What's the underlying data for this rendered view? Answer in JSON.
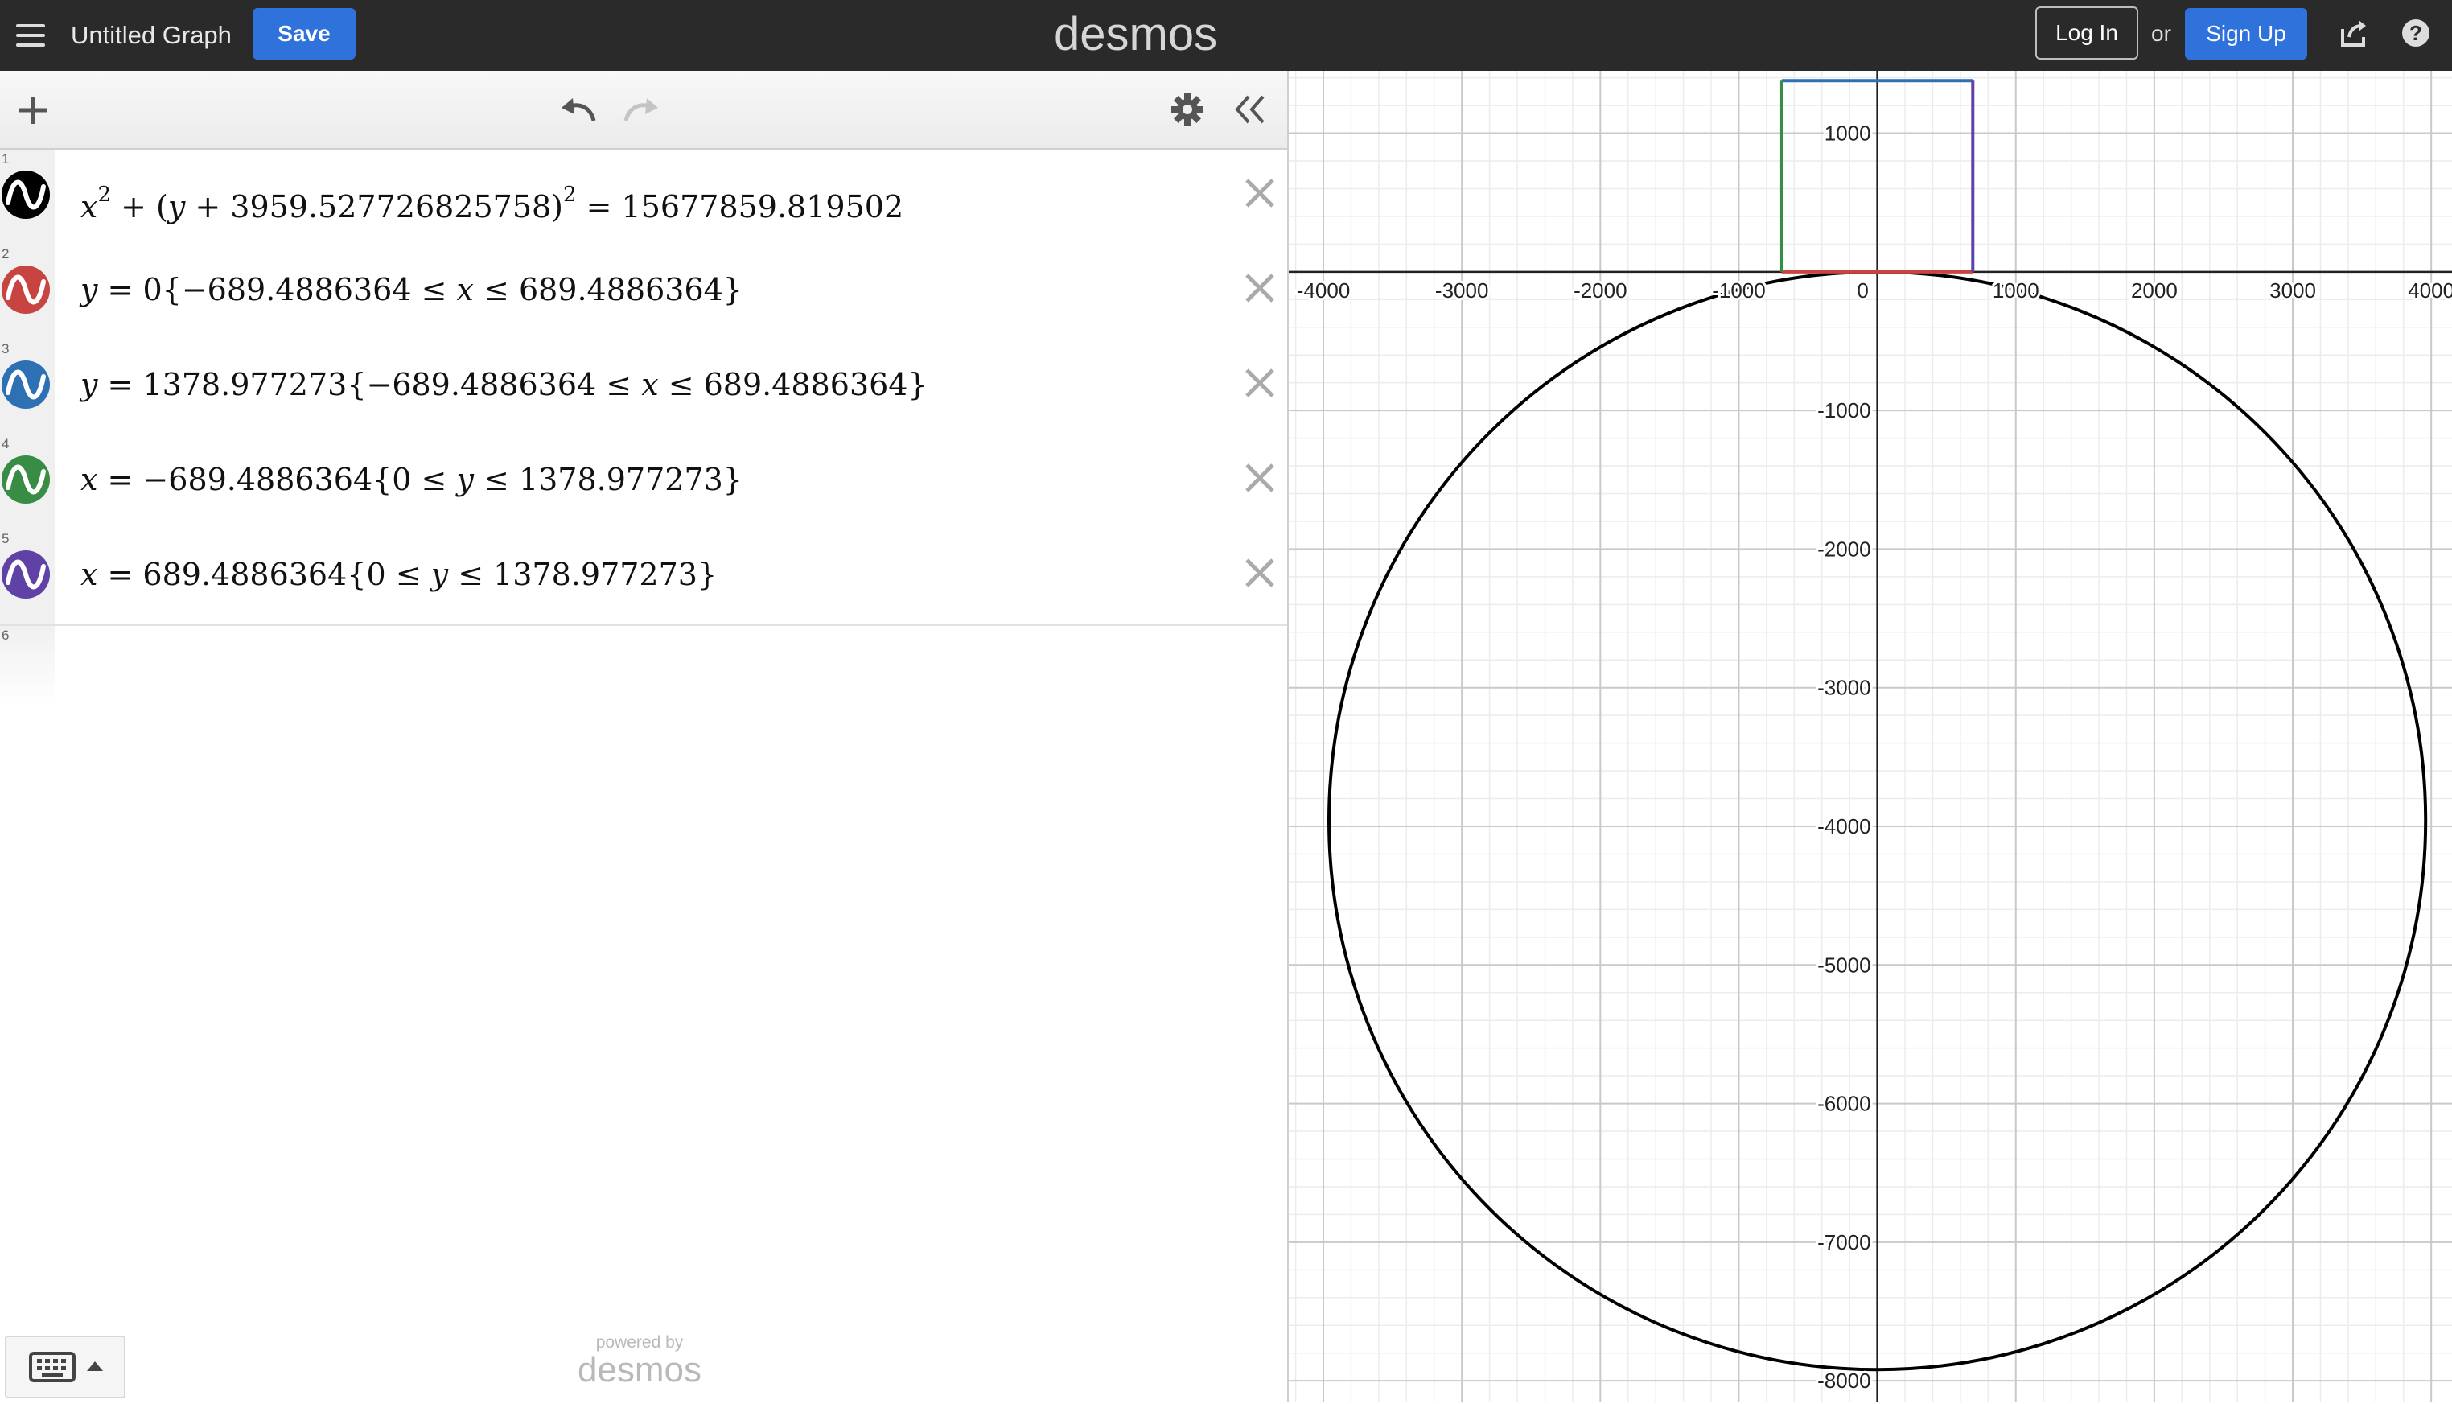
{
  "header": {
    "title": "Untitled Graph",
    "save_label": "Save",
    "logo_text": "desmos",
    "login_label": "Log In",
    "or_text": "or",
    "signup_label": "Sign Up",
    "help_label": "?"
  },
  "toolbar": {
    "icons": [
      "plus-icon",
      "undo-icon",
      "redo-icon",
      "gear-icon",
      "double-chevron-left-icon"
    ]
  },
  "expressions": [
    {
      "number": "1",
      "color": "#000000",
      "latex_parts": {
        "a": "x",
        "sup": "2",
        "b": " + (",
        "c": "y",
        "d": " + 3959.527726825758)",
        "sup2": "2",
        "e": " = 15677859.819502"
      }
    },
    {
      "number": "2",
      "color": "#c74440",
      "latex_parts": {
        "a": "y",
        "b": " = 0{−689.4886364 ≤ ",
        "c": "x",
        "d": " ≤ 689.4886364}"
      }
    },
    {
      "number": "3",
      "color": "#2d70b3",
      "latex_parts": {
        "a": "y",
        "b": " = 1378.977273{−689.4886364 ≤ ",
        "c": "x",
        "d": " ≤ 689.4886364}"
      }
    },
    {
      "number": "4",
      "color": "#388c46",
      "latex_parts": {
        "a": "x",
        "b": " = −689.4886364{0 ≤ ",
        "c": "y",
        "d": " ≤ 1378.977273}"
      }
    },
    {
      "number": "5",
      "color": "#6042a6",
      "latex_parts": {
        "a": "x",
        "b": " = 689.4886364{0 ≤ ",
        "c": "y",
        "d": " ≤ 1378.977273}"
      }
    }
  ],
  "empty_row_number": "6",
  "footer": {
    "powered_by": "powered by",
    "brand": "desmos"
  },
  "graph": {
    "x_ticks": [
      "-4000",
      "-3000",
      "-2000",
      "-1000",
      "0",
      "1000",
      "2000",
      "3000",
      "4000"
    ],
    "y_ticks": [
      "1000",
      "-1000",
      "-2000",
      "-3000",
      "-4000",
      "-5000",
      "-6000",
      "-7000",
      "-8000"
    ],
    "x_range": [
      -4250,
      4150
    ],
    "y_range": [
      -8150,
      1450
    ],
    "major_step": 1000,
    "minor_step": 200,
    "circle": {
      "center_y": -3959.527726825758,
      "radius": 3959.5277,
      "color": "#000000"
    },
    "half_width": 689.4886364,
    "height_value": 1378.977273,
    "colors": {
      "red": "#c74440",
      "blue": "#2d70b3",
      "green": "#388c46",
      "purple": "#6042a6",
      "black": "#000000"
    }
  }
}
